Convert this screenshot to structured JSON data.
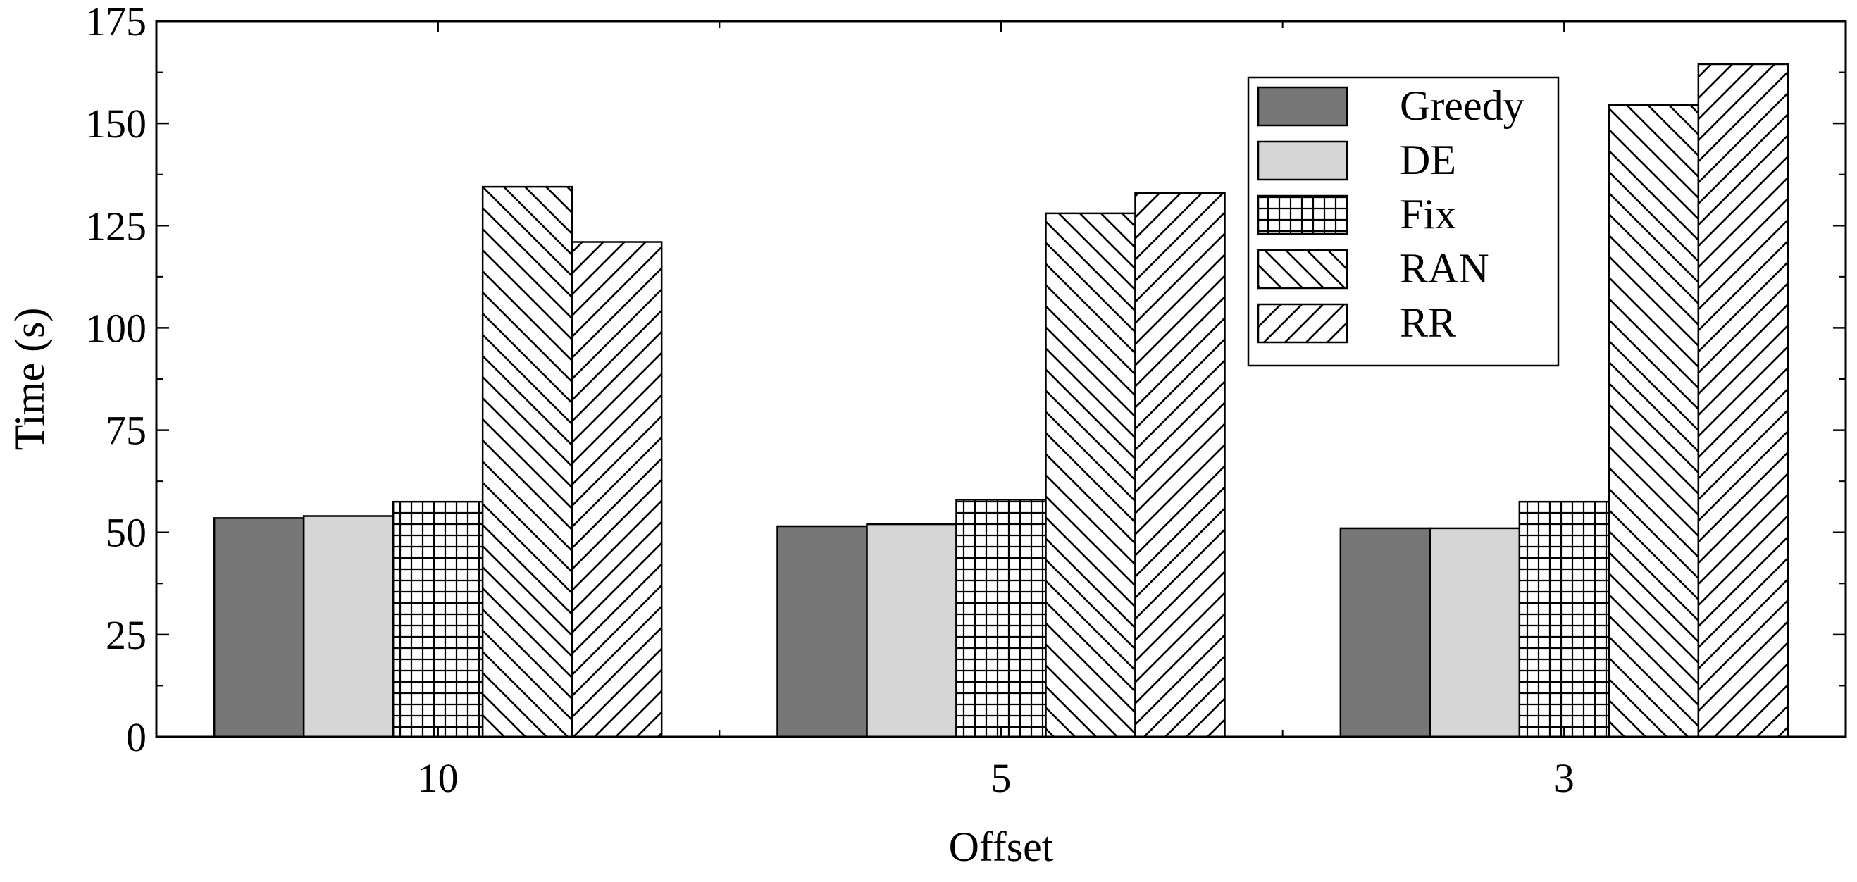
{
  "chart_data": {
    "type": "bar",
    "title": "",
    "xlabel": "Offset",
    "ylabel": "Time (s)",
    "categories": [
      "10",
      "5",
      "3"
    ],
    "ylim": [
      0,
      175
    ],
    "yticks": [
      0,
      25,
      50,
      75,
      100,
      125,
      150,
      175
    ],
    "grid": false,
    "legend_position": "top-right",
    "series": [
      {
        "name": "Greedy",
        "pattern": "solid-dark",
        "color": "#777777",
        "values": [
          53.5,
          51.5,
          51
        ]
      },
      {
        "name": "DE",
        "pattern": "solid-light",
        "color": "#d6d6d6",
        "values": [
          54,
          52,
          51
        ]
      },
      {
        "name": "Fix",
        "pattern": "grid",
        "color": "#000000",
        "values": [
          57.5,
          58,
          57.5
        ]
      },
      {
        "name": "RAN",
        "pattern": "backslash-hatch",
        "color": "#000000",
        "values": [
          134.5,
          128,
          154.5
        ]
      },
      {
        "name": "RR",
        "pattern": "slash-hatch",
        "color": "#000000",
        "values": [
          121,
          133,
          164.5
        ]
      }
    ]
  }
}
